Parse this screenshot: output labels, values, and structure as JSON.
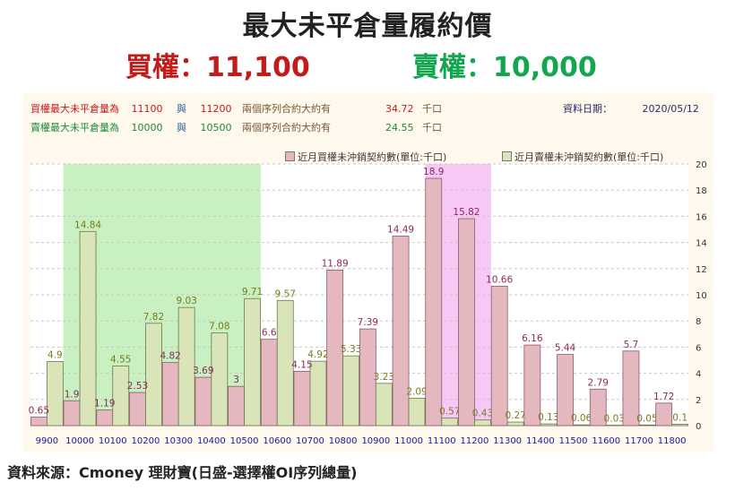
{
  "header": {
    "title": "最大未平倉量履約價",
    "call_text": "買權：11,100",
    "put_text": "賣權：10,000"
  },
  "info": {
    "row1": {
      "label": "買權最大未平倉量為",
      "v1": "11100",
      "mid": "與",
      "v2": "11200",
      "desc": "兩個序列合約大約有",
      "amount": "34.72",
      "unit": "千口"
    },
    "row2": {
      "label": "賣權最大未平倉量為",
      "v1": "10000",
      "mid": "與",
      "v2": "10500",
      "desc": "兩個序列合約大約有",
      "amount": "24.55",
      "unit": "千口"
    },
    "date_label": "資料日期：",
    "date_value": "2020/05/12"
  },
  "source": "資料來源：Cmoney 理財寶(日盛-選擇權OI序列總量)",
  "colors": {
    "call_bar": "#e5b8c0",
    "put_bar": "#d9e5b8",
    "call_label": "#8a2a5a",
    "put_label": "#7a7a1a",
    "put_highlight": "#c8f0c0",
    "call_highlight": "#f5c8f5",
    "axis_tick": "#1a1aa0"
  },
  "chart_data": {
    "type": "bar",
    "categories": [
      "9900",
      "10000",
      "10100",
      "10200",
      "10300",
      "10400",
      "10500",
      "10600",
      "10700",
      "10800",
      "10900",
      "11000",
      "11100",
      "11200",
      "11300",
      "11400",
      "11500",
      "11600",
      "11700",
      "11800"
    ],
    "series": [
      {
        "name": "近月買權未沖銷契約數(單位:千口)",
        "values": [
          0.65,
          1.9,
          1.19,
          2.53,
          4.82,
          3.69,
          3,
          6.6,
          4.15,
          11.89,
          7.39,
          14.49,
          18.9,
          15.82,
          10.66,
          6.16,
          5.44,
          2.79,
          5.7,
          1.72
        ]
      },
      {
        "name": "近月賣權未沖銷契約數(單位:千口)",
        "values": [
          4.9,
          14.84,
          4.55,
          7.82,
          9.03,
          7.08,
          9.71,
          9.57,
          4.92,
          5.33,
          3.23,
          2.09,
          0.57,
          0.43,
          0.27,
          0.13,
          0.06,
          0.03,
          0.05,
          0.1
        ]
      }
    ],
    "value_labels": {
      "call": [
        "0.65",
        "1.9",
        "1.19",
        "2.53",
        "4.82",
        "3.69",
        "3",
        "6.6",
        "4.15",
        "11.89",
        "7.39",
        "14.49",
        "18.9",
        "15.82",
        "10.66",
        "6.16",
        "5.44",
        "2.79",
        "5.7",
        "1.72"
      ],
      "put": [
        "4.9",
        "14.84",
        "4.55",
        "7.82",
        "9.03",
        "7.08",
        "9.71",
        "9.57",
        "4.92",
        "5.33",
        "3.23",
        "2.09",
        "0.57",
        "0.43",
        "0.27",
        "0.13",
        "0.06",
        "0.03",
        "0.05",
        "0.1"
      ]
    },
    "ylim": [
      0,
      20
    ],
    "yticks": [
      "0",
      "2",
      "4",
      "6",
      "8",
      "10",
      "12",
      "14",
      "16",
      "18",
      "20"
    ],
    "y_axis_side": "right",
    "grid": true,
    "legend_position": "top",
    "highlight_put_range": [
      "10000",
      "10500"
    ],
    "highlight_call_range": [
      "11100",
      "11200"
    ]
  }
}
